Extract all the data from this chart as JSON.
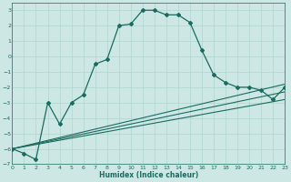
{
  "xlabel": "Humidex (Indice chaleur)",
  "background_color": "#cde8e4",
  "grid_color": "#acd4ce",
  "line_color": "#1a6b60",
  "xlim": [
    0,
    23
  ],
  "ylim": [
    -7,
    3.5
  ],
  "yticks": [
    -7,
    -6,
    -5,
    -4,
    -3,
    -2,
    -1,
    0,
    1,
    2,
    3
  ],
  "xticks": [
    0,
    1,
    2,
    3,
    4,
    5,
    6,
    7,
    8,
    9,
    10,
    11,
    12,
    13,
    14,
    15,
    16,
    17,
    18,
    19,
    20,
    21,
    22,
    23
  ],
  "trend1_x": [
    0,
    23
  ],
  "trend1_y": [
    -6.0,
    -1.8
  ],
  "trend2_x": [
    0,
    23
  ],
  "trend2_y": [
    -6.0,
    -2.3
  ],
  "trend3_x": [
    0,
    23
  ],
  "trend3_y": [
    -6.0,
    -2.8
  ],
  "curve_x": [
    0,
    1,
    2,
    3,
    4,
    5,
    6,
    7,
    8,
    9,
    10,
    11,
    12,
    13,
    14,
    15,
    16,
    17,
    18,
    19,
    20,
    21,
    22,
    23
  ],
  "curve_y": [
    -6.0,
    -6.3,
    -6.7,
    -3.0,
    -4.4,
    -3.0,
    -2.5,
    -0.5,
    -0.2,
    2.0,
    2.1,
    3.0,
    3.0,
    2.7,
    2.7,
    2.2,
    0.4,
    -1.2,
    -1.7,
    -2.0,
    -2.0,
    -2.2,
    -2.8,
    -2.0
  ]
}
